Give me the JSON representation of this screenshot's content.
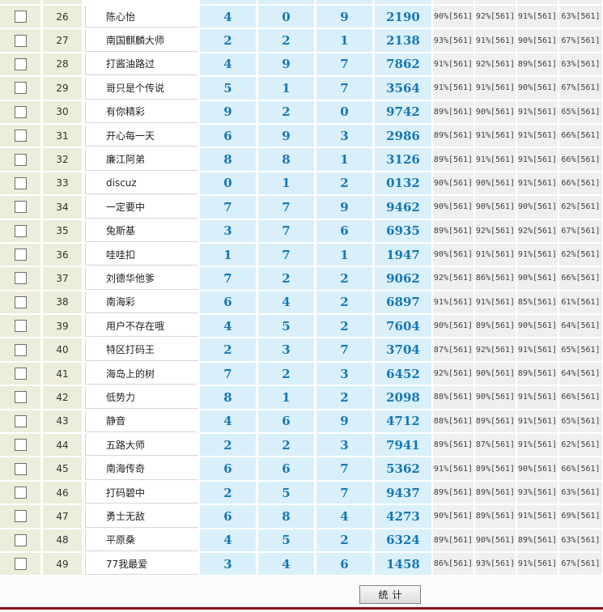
{
  "table": {
    "rows": [
      {
        "num": "26",
        "name": "陈心怡",
        "digits": [
          "4",
          "0",
          "9"
        ],
        "code": "2190",
        "stats": [
          "90%[561]",
          "92%[561]",
          "91%[561]",
          "63%[561]"
        ]
      },
      {
        "num": "27",
        "name": "南国麒麟大师",
        "digits": [
          "2",
          "2",
          "1"
        ],
        "code": "2138",
        "stats": [
          "93%[561]",
          "91%[561]",
          "90%[561]",
          "67%[561]"
        ]
      },
      {
        "num": "28",
        "name": "打酱油路过",
        "digits": [
          "4",
          "9",
          "7"
        ],
        "code": "7862",
        "stats": [
          "91%[561]",
          "92%[561]",
          "89%[561]",
          "63%[561]"
        ]
      },
      {
        "num": "29",
        "name": "哥只是个传说",
        "digits": [
          "5",
          "1",
          "7"
        ],
        "code": "3564",
        "stats": [
          "91%[561]",
          "91%[561]",
          "90%[561]",
          "67%[561]"
        ]
      },
      {
        "num": "30",
        "name": "有你精彩",
        "digits": [
          "9",
          "2",
          "0"
        ],
        "code": "9742",
        "stats": [
          "89%[561]",
          "90%[561]",
          "91%[561]",
          "65%[561]"
        ]
      },
      {
        "num": "31",
        "name": "开心每一天",
        "digits": [
          "6",
          "9",
          "3"
        ],
        "code": "2986",
        "stats": [
          "89%[561]",
          "91%[561]",
          "91%[561]",
          "66%[561]"
        ]
      },
      {
        "num": "32",
        "name": "廉江阿弟",
        "digits": [
          "8",
          "8",
          "1"
        ],
        "code": "3126",
        "stats": [
          "89%[561]",
          "91%[561]",
          "91%[561]",
          "66%[561]"
        ]
      },
      {
        "num": "33",
        "name": "discuz",
        "digits": [
          "0",
          "1",
          "2"
        ],
        "code": "0132",
        "stats": [
          "90%[561]",
          "90%[561]",
          "91%[561]",
          "66%[561]"
        ]
      },
      {
        "num": "34",
        "name": "一定要中",
        "digits": [
          "7",
          "7",
          "9"
        ],
        "code": "9462",
        "stats": [
          "90%[561]",
          "90%[561]",
          "90%[561]",
          "62%[561]"
        ]
      },
      {
        "num": "35",
        "name": "兔斯基",
        "digits": [
          "3",
          "7",
          "6"
        ],
        "code": "6935",
        "stats": [
          "89%[561]",
          "92%[561]",
          "92%[561]",
          "67%[561]"
        ]
      },
      {
        "num": "36",
        "name": "哇哇扣",
        "digits": [
          "1",
          "7",
          "1"
        ],
        "code": "1947",
        "stats": [
          "90%[561]",
          "91%[561]",
          "91%[561]",
          "62%[561]"
        ]
      },
      {
        "num": "37",
        "name": "刘德华他爹",
        "digits": [
          "7",
          "2",
          "2"
        ],
        "code": "9062",
        "stats": [
          "92%[561]",
          "86%[561]",
          "90%[561]",
          "66%[561]"
        ]
      },
      {
        "num": "38",
        "name": "南海彩",
        "digits": [
          "6",
          "4",
          "2"
        ],
        "code": "6897",
        "stats": [
          "91%[561]",
          "91%[561]",
          "85%[561]",
          "61%[561]"
        ]
      },
      {
        "num": "39",
        "name": "用户不存在哦",
        "digits": [
          "4",
          "5",
          "2"
        ],
        "code": "7604",
        "stats": [
          "90%[561]",
          "89%[561]",
          "90%[561]",
          "64%[561]"
        ]
      },
      {
        "num": "40",
        "name": "特区打码王",
        "digits": [
          "2",
          "3",
          "7"
        ],
        "code": "3704",
        "stats": [
          "87%[561]",
          "92%[561]",
          "91%[561]",
          "65%[561]"
        ]
      },
      {
        "num": "41",
        "name": "海岛上的树",
        "digits": [
          "7",
          "2",
          "3"
        ],
        "code": "6452",
        "stats": [
          "92%[561]",
          "90%[561]",
          "89%[561]",
          "64%[561]"
        ]
      },
      {
        "num": "42",
        "name": "低势力",
        "digits": [
          "8",
          "1",
          "2"
        ],
        "code": "2098",
        "stats": [
          "88%[561]",
          "90%[561]",
          "91%[561]",
          "66%[561]"
        ]
      },
      {
        "num": "43",
        "name": "静音",
        "digits": [
          "4",
          "6",
          "9"
        ],
        "code": "4712",
        "stats": [
          "88%[561]",
          "89%[561]",
          "91%[561]",
          "65%[561]"
        ]
      },
      {
        "num": "44",
        "name": "五路大师",
        "digits": [
          "2",
          "2",
          "3"
        ],
        "code": "7941",
        "stats": [
          "89%[561]",
          "87%[561]",
          "91%[561]",
          "62%[561]"
        ]
      },
      {
        "num": "45",
        "name": "南海传奇",
        "digits": [
          "6",
          "6",
          "7"
        ],
        "code": "5362",
        "stats": [
          "91%[561]",
          "89%[561]",
          "90%[561]",
          "66%[561]"
        ]
      },
      {
        "num": "46",
        "name": "打码碧中",
        "digits": [
          "2",
          "5",
          "7"
        ],
        "code": "9437",
        "stats": [
          "89%[561]",
          "89%[561]",
          "93%[561]",
          "63%[561]"
        ]
      },
      {
        "num": "47",
        "name": "勇士无敌",
        "digits": [
          "6",
          "8",
          "4"
        ],
        "code": "4273",
        "stats": [
          "90%[561]",
          "89%[561]",
          "91%[561]",
          "69%[561]"
        ]
      },
      {
        "num": "48",
        "name": "平原桑",
        "digits": [
          "4",
          "5",
          "2"
        ],
        "code": "6324",
        "stats": [
          "89%[561]",
          "90%[561]",
          "89%[561]",
          "63%[561]"
        ]
      },
      {
        "num": "49",
        "name": "77我最爱",
        "digits": [
          "3",
          "4",
          "6"
        ],
        "code": "1458",
        "stats": [
          "86%[561]",
          "93%[561]",
          "91%[561]",
          "67%[561]"
        ]
      }
    ]
  },
  "footer": {
    "button_label": "统计"
  },
  "colors": {
    "beige": "#EDEDDB",
    "blue-bg": "#D9F0FA",
    "blue-text": "#1777B5",
    "stat-bg": "#EFEFEF",
    "stat-text": "#404040",
    "red-line": "#8E1111",
    "footer-bg": "#FCFCFC"
  }
}
